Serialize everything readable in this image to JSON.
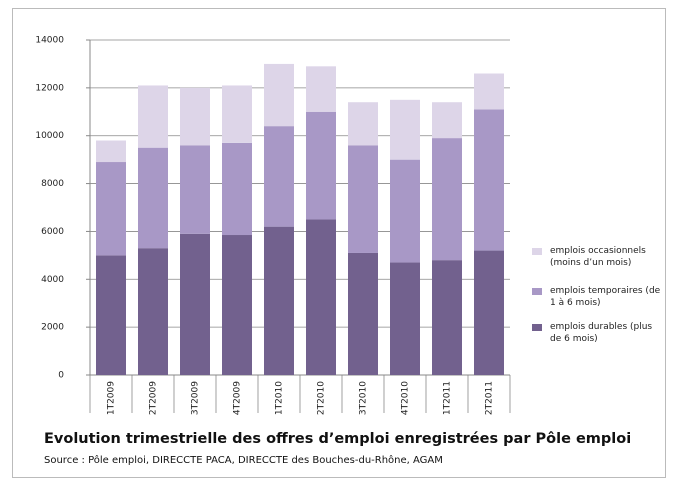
{
  "chart_data": {
    "type": "stacked_bar",
    "title": "Evolution trimestrielle des offres d’emploi enregistrées par Pôle emploi",
    "subtitle": "Source : Pôle emploi, DIRECCTE PACA, DIRECCTE des Bouches-du-Rhône, AGAM",
    "categories": [
      "1T2009",
      "2T2009",
      "3T2009",
      "4T2009",
      "1T2010",
      "2T2010",
      "3T2010",
      "4T2010",
      "1T2011",
      "2T2011"
    ],
    "series": [
      {
        "name": "emplois durables (plus de 6 mois)",
        "color": "#72618e",
        "values": [
          5000,
          5300,
          5900,
          5850,
          6200,
          6500,
          5100,
          4700,
          4800,
          5200
        ]
      },
      {
        "name": "emplois temporaires (de 1 à 6 mois)",
        "color": "#a898c6",
        "values": [
          3900,
          4200,
          3700,
          3850,
          4200,
          4500,
          4500,
          4300,
          5100,
          5900
        ]
      },
      {
        "name": "emplois occasionnels (moins d’un mois)",
        "color": "#ddd5e8",
        "values": [
          900,
          2600,
          2400,
          2400,
          2600,
          1900,
          1800,
          2500,
          1500,
          1500
        ]
      }
    ],
    "ylim": [
      0,
      14000
    ],
    "yticks": [
      0,
      2000,
      4000,
      6000,
      8000,
      10000,
      12000,
      14000
    ],
    "grid": true,
    "legend": "right"
  }
}
